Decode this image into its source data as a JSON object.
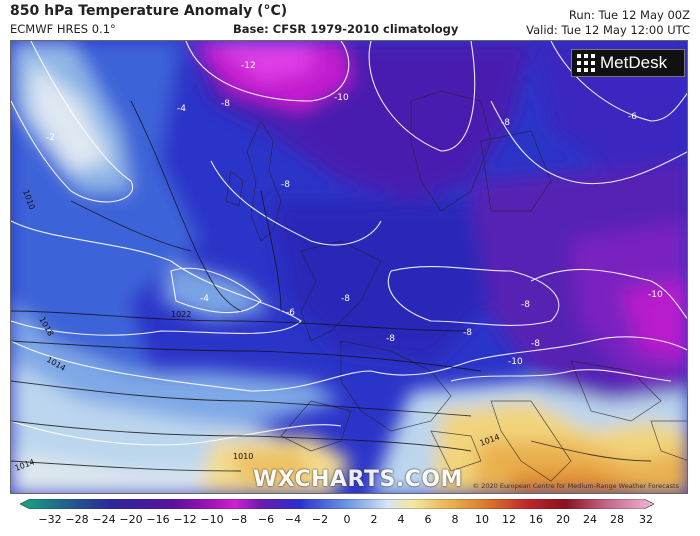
{
  "header": {
    "title": "850 hPa Temperature Anomaly (°C)",
    "model": "ECMWF HRES 0.1°",
    "base": "Base: CFSR 1979-2010 climatology",
    "run": "Run: Tue 12 May 00Z",
    "valid": "Valid: Tue 12 May 12:00 UTC"
  },
  "logo": {
    "text": "MetDesk",
    "icon": "metdesk-logo-icon"
  },
  "watermark": "WXCHARTS.COM",
  "credit": "© 2020 European Centre for Medium-Range Weather Forecasts",
  "map": {
    "temperature_labels": [
      "-12",
      "-10",
      "-8",
      "-8",
      "-6",
      "-4",
      "-2",
      "-8",
      "-8",
      "-4",
      "-6",
      "-8",
      "-8",
      "-8",
      "-10",
      "-10",
      "-8"
    ],
    "pressure_labels": [
      "1022",
      "1018",
      "1014",
      "1010",
      "1014",
      "1014",
      "1010"
    ],
    "colors": {
      "deep_blue": "#2a2fd0",
      "purple": "#5a1aa8",
      "magenta": "#c219d4",
      "light_blue": "#8ab8e8",
      "pale": "#e6ecf2",
      "yellow": "#f4d27a",
      "orange": "#e4a23a"
    }
  },
  "colorbar": {
    "ticks": [
      "−32",
      "−28",
      "−24",
      "−20",
      "−16",
      "−12",
      "−10",
      "−8",
      "−6",
      "−4",
      "−2",
      "0",
      "2",
      "4",
      "6",
      "8",
      "10",
      "12",
      "16",
      "20",
      "24",
      "28",
      "32"
    ]
  }
}
